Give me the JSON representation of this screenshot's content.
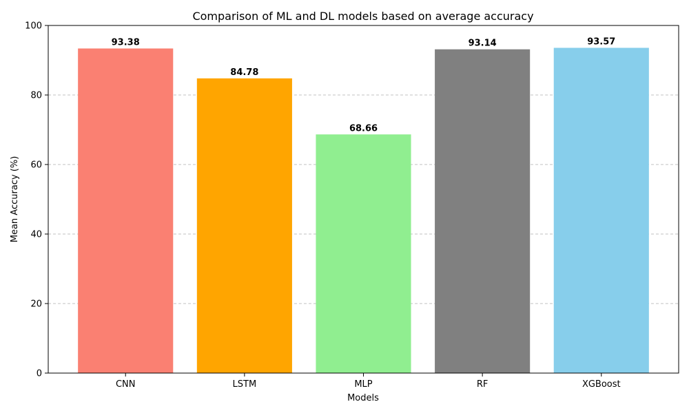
{
  "chart_data": {
    "type": "bar",
    "title": "Comparison of ML and DL models based on average accuracy",
    "xlabel": "Models",
    "ylabel": "Mean Accuracy (%)",
    "categories": [
      "CNN",
      "LSTM",
      "MLP",
      "RF",
      "XGBoost"
    ],
    "values": [
      93.38,
      84.78,
      68.66,
      93.14,
      93.57
    ],
    "value_labels": [
      "93.38",
      "84.78",
      "68.66",
      "93.14",
      "93.57"
    ],
    "colors": [
      "#fa8072",
      "#ffa500",
      "#90ee90",
      "#808080",
      "#87ceeb"
    ],
    "ylim": [
      0,
      100
    ],
    "yticks": [
      0,
      20,
      40,
      60,
      80,
      100
    ],
    "ytick_labels": [
      "0",
      "20",
      "40",
      "60",
      "80",
      "100"
    ],
    "grid": "y-dashed",
    "legend": "none"
  }
}
